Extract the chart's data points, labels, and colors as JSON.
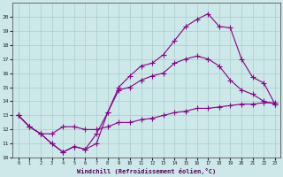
{
  "xlabel": "Windchill (Refroidissement éolien,°C)",
  "bg_color": "#cce8e8",
  "grid_color": "#aacccc",
  "line_color": "#880088",
  "ylim": [
    10,
    21
  ],
  "xlim": [
    -0.5,
    23.5
  ],
  "yticks": [
    10,
    11,
    12,
    13,
    14,
    15,
    16,
    17,
    18,
    19,
    20
  ],
  "xticks": [
    0,
    1,
    2,
    3,
    4,
    5,
    6,
    7,
    8,
    9,
    10,
    11,
    12,
    13,
    14,
    15,
    16,
    17,
    18,
    19,
    20,
    21,
    22,
    23
  ],
  "line1_x": [
    0,
    1,
    2,
    3,
    4,
    5,
    6,
    7,
    8,
    9,
    10,
    11,
    12,
    13,
    14,
    15,
    16,
    17,
    18,
    19,
    20,
    21,
    22,
    23
  ],
  "line1_y": [
    13.0,
    12.2,
    11.7,
    11.7,
    12.2,
    12.2,
    12.0,
    12.0,
    12.2,
    12.5,
    12.5,
    12.7,
    12.8,
    13.0,
    13.2,
    13.3,
    13.5,
    13.5,
    13.6,
    13.7,
    13.8,
    13.8,
    13.9,
    13.9
  ],
  "line2_x": [
    0,
    1,
    2,
    3,
    4,
    5,
    6,
    7,
    8,
    9,
    10,
    11,
    12,
    13,
    14,
    15,
    16,
    17,
    18,
    19,
    20,
    21,
    22,
    23
  ],
  "line2_y": [
    13.0,
    12.2,
    11.7,
    11.0,
    10.4,
    10.8,
    10.6,
    11.0,
    13.2,
    14.8,
    15.0,
    15.5,
    15.8,
    16.0,
    16.7,
    17.0,
    17.2,
    17.0,
    16.5,
    15.5,
    14.8,
    14.5,
    14.0,
    13.8
  ],
  "line3_x": [
    0,
    1,
    2,
    3,
    4,
    5,
    6,
    7,
    8,
    9,
    10,
    11,
    12,
    13,
    14,
    15,
    16,
    17,
    18,
    19,
    20,
    21,
    22,
    23
  ],
  "line3_y": [
    13.0,
    12.2,
    11.7,
    11.0,
    10.4,
    10.8,
    10.6,
    11.7,
    13.2,
    15.0,
    15.8,
    16.5,
    16.7,
    17.3,
    18.3,
    19.3,
    19.8,
    20.2,
    19.3,
    19.2,
    17.0,
    15.7,
    15.3,
    13.8
  ]
}
